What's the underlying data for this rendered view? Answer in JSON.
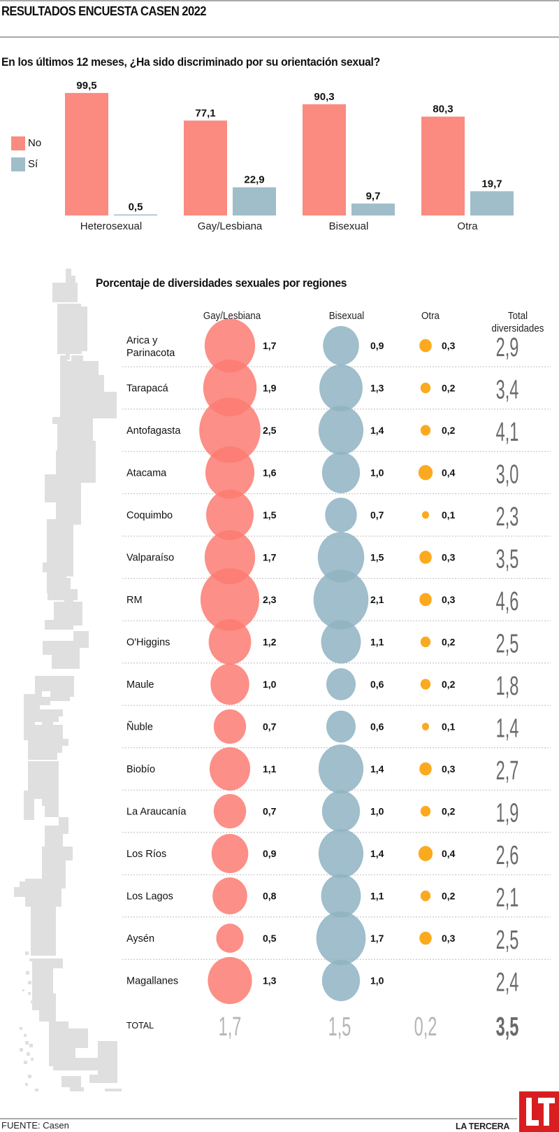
{
  "header": {
    "title": "RESULTADOS ENCUESTA CASEN 2022"
  },
  "colors": {
    "no": "#fb8a80",
    "si": "#9fbec9",
    "gay": "#fb7b72",
    "bisexual": "#8fb3c2",
    "otra": "#fbaa1f",
    "total_text": "#6a6a6a",
    "total_light": "#b5b5b5",
    "map": "#dfdfdf",
    "brand": "#d81e20"
  },
  "chart_data": [
    {
      "type": "bar",
      "title": "En los últimos 12 meses, ¿Ha sido discriminado por su orientación sexual?",
      "categories": [
        "Heterosexual",
        "Gay/Lesbiana",
        "Bisexual",
        "Otra"
      ],
      "series": [
        {
          "name": "No",
          "values": [
            99.5,
            77.1,
            90.3,
            80.3
          ],
          "labels": [
            "99,5",
            "77,1",
            "90,3",
            "80,3"
          ]
        },
        {
          "name": "Sí",
          "values": [
            0.5,
            22.9,
            9.7,
            19.7
          ],
          "labels": [
            "0,5",
            "22,9",
            "9,7",
            "19,7"
          ]
        }
      ],
      "ylim": [
        0,
        100
      ],
      "legend": "left",
      "grid": false
    },
    {
      "type": "table",
      "title": "Porcentaje de diversidades sexuales por regiones",
      "columns": [
        "Gay/Lesbiana",
        "Bisexual",
        "Otra",
        "Total diversidades"
      ],
      "rows": [
        {
          "region": "Arica y Parinacota",
          "gay": 1.7,
          "bisexual": 0.9,
          "otra": 0.3,
          "total": 2.9,
          "labels": [
            "1,7",
            "0,9",
            "0,3",
            "2,9"
          ]
        },
        {
          "region": "Tarapacá",
          "gay": 1.9,
          "bisexual": 1.3,
          "otra": 0.2,
          "total": 3.4,
          "labels": [
            "1,9",
            "1,3",
            "0,2",
            "3,4"
          ]
        },
        {
          "region": "Antofagasta",
          "gay": 2.5,
          "bisexual": 1.4,
          "otra": 0.2,
          "total": 4.1,
          "labels": [
            "2,5",
            "1,4",
            "0,2",
            "4,1"
          ]
        },
        {
          "region": "Atacama",
          "gay": 1.6,
          "bisexual": 1.0,
          "otra": 0.4,
          "total": 3.0,
          "labels": [
            "1,6",
            "1,0",
            "0,4",
            "3,0"
          ]
        },
        {
          "region": "Coquimbo",
          "gay": 1.5,
          "bisexual": 0.7,
          "otra": 0.1,
          "total": 2.3,
          "labels": [
            "1,5",
            "0,7",
            "0,1",
            "2,3"
          ]
        },
        {
          "region": "Valparaíso",
          "gay": 1.7,
          "bisexual": 1.5,
          "otra": 0.3,
          "total": 3.5,
          "labels": [
            "1,7",
            "1,5",
            "0,3",
            "3,5"
          ]
        },
        {
          "region": "RM",
          "gay": 2.3,
          "bisexual": 2.1,
          "otra": 0.3,
          "total": 4.6,
          "labels": [
            "2,3",
            "2,1",
            "0,3",
            "4,6"
          ]
        },
        {
          "region": "O'Higgins",
          "gay": 1.2,
          "bisexual": 1.1,
          "otra": 0.2,
          "total": 2.5,
          "labels": [
            "1,2",
            "1,1",
            "0,2",
            "2,5"
          ]
        },
        {
          "region": "Maule",
          "gay": 1.0,
          "bisexual": 0.6,
          "otra": 0.2,
          "total": 1.8,
          "labels": [
            "1,0",
            "0,6",
            "0,2",
            "1,8"
          ]
        },
        {
          "region": "Ñuble",
          "gay": 0.7,
          "bisexual": 0.6,
          "otra": 0.1,
          "total": 1.4,
          "labels": [
            "0,7",
            "0,6",
            "0,1",
            "1,4"
          ]
        },
        {
          "region": "Biobío",
          "gay": 1.1,
          "bisexual": 1.4,
          "otra": 0.3,
          "total": 2.7,
          "labels": [
            "1,1",
            "1,4",
            "0,3",
            "2,7"
          ]
        },
        {
          "region": "La Araucanía",
          "gay": 0.7,
          "bisexual": 1.0,
          "otra": 0.2,
          "total": 1.9,
          "labels": [
            "0,7",
            "1,0",
            "0,2",
            "1,9"
          ]
        },
        {
          "region": "Los Ríos",
          "gay": 0.9,
          "bisexual": 1.4,
          "otra": 0.4,
          "total": 2.6,
          "labels": [
            "0,9",
            "1,4",
            "0,4",
            "2,6"
          ]
        },
        {
          "region": "Los Lagos",
          "gay": 0.8,
          "bisexual": 1.1,
          "otra": 0.2,
          "total": 2.1,
          "labels": [
            "0,8",
            "1,1",
            "0,2",
            "2,1"
          ]
        },
        {
          "region": "Aysén",
          "gay": 0.5,
          "bisexual": 1.7,
          "otra": 0.3,
          "total": 2.5,
          "labels": [
            "0,5",
            "1,7",
            "0,3",
            "2,5"
          ]
        },
        {
          "region": "Magallanes",
          "gay": 1.3,
          "bisexual": 1.0,
          "otra": null,
          "total": 2.4,
          "labels": [
            "1,3",
            "1,0",
            "",
            "2,4"
          ]
        }
      ],
      "total_row": {
        "label": "TOTAL",
        "gay": 1.7,
        "bisexual": 1.5,
        "otra": 0.2,
        "total": 3.5,
        "labels": [
          "1,7",
          "1,5",
          "0,2",
          "3,5"
        ]
      }
    }
  ],
  "bar_section": {
    "question": "En los últimos 12 meses, ¿Ha sido discriminado por su orientación sexual?",
    "legend": [
      {
        "label": "No"
      },
      {
        "label": "Sí"
      }
    ]
  },
  "bubble_section": {
    "title": "Porcentaje de diversidades sexuales por regiones",
    "headers": {
      "gay": "Gay/Lesbiana",
      "bisexual": "Bisexual",
      "otra": "Otra",
      "total_line1": "Total",
      "total_line2": "diversidades"
    }
  },
  "footer": {
    "source": "FUENTE: Casen",
    "brand": "LA TERCERA",
    "logo": "LT"
  }
}
